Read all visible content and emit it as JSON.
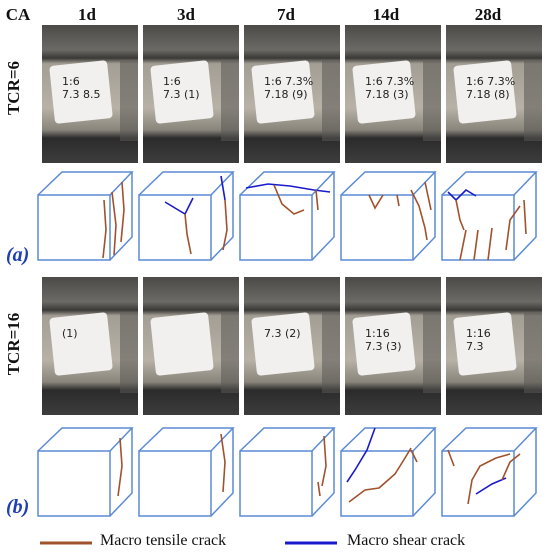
{
  "corner_label": "CA",
  "ages": [
    "1d",
    "3d",
    "7d",
    "14d",
    "28d"
  ],
  "rows": [
    {
      "label": "TCR=6",
      "panel": "(a)",
      "photo_marks": [
        "1:6\n7.3 8.5",
        "1:6\n7.3 (1)",
        "1:6 7.3%\n7.18 (9)",
        "1:6 7.3%\n7.18 (3)",
        "1:6 7.3%\n7.18 (8)"
      ]
    },
    {
      "label": "TCR=16",
      "panel": "(b)",
      "photo_marks": [
        "(1)",
        "",
        "7.3 (2)",
        "1:16\n7.3 (3)",
        "1:16\n7.3"
      ]
    }
  ],
  "legend": {
    "tensile": {
      "label": "Macro tensile crack",
      "color": "#a0522d"
    },
    "shear": {
      "label": "Macro shear crack",
      "color": "#1a1acd"
    }
  },
  "colors": {
    "cube_edge": "#5b8ad6",
    "panel_tag": "#1f3fb5"
  }
}
